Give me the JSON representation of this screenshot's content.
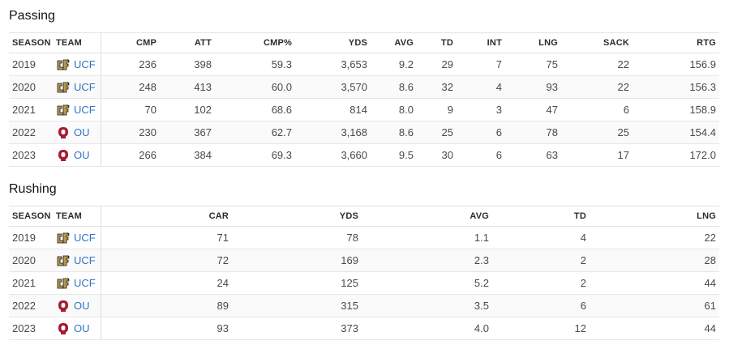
{
  "passing": {
    "title": "Passing",
    "columns": [
      "SEASON",
      "TEAM",
      "CMP",
      "ATT",
      "CMP%",
      "YDS",
      "AVG",
      "TD",
      "INT",
      "LNG",
      "SACK",
      "RTG"
    ],
    "rows": [
      {
        "season": "2019",
        "team": "UCF",
        "logo": "ucf-knights-logo",
        "cmp": "236",
        "att": "398",
        "pct": "59.3",
        "yds": "3,653",
        "avg": "9.2",
        "td": "29",
        "int": "7",
        "lng": "75",
        "sack": "22",
        "rtg": "156.9"
      },
      {
        "season": "2020",
        "team": "UCF",
        "logo": "ucf-knights-logo",
        "cmp": "248",
        "att": "413",
        "pct": "60.0",
        "yds": "3,570",
        "avg": "8.6",
        "td": "32",
        "int": "4",
        "lng": "93",
        "sack": "22",
        "rtg": "156.3"
      },
      {
        "season": "2021",
        "team": "UCF",
        "logo": "ucf-knights-logo",
        "cmp": "70",
        "att": "102",
        "pct": "68.6",
        "yds": "814",
        "avg": "8.0",
        "td": "9",
        "int": "3",
        "lng": "47",
        "sack": "6",
        "rtg": "158.9"
      },
      {
        "season": "2022",
        "team": "OU",
        "logo": "ou-sooners-logo",
        "cmp": "230",
        "att": "367",
        "pct": "62.7",
        "yds": "3,168",
        "avg": "8.6",
        "td": "25",
        "int": "6",
        "lng": "78",
        "sack": "25",
        "rtg": "154.4"
      },
      {
        "season": "2023",
        "team": "OU",
        "logo": "ou-sooners-logo",
        "cmp": "266",
        "att": "384",
        "pct": "69.3",
        "yds": "3,660",
        "avg": "9.5",
        "td": "30",
        "int": "6",
        "lng": "63",
        "sack": "17",
        "rtg": "172.0"
      }
    ]
  },
  "rushing": {
    "title": "Rushing",
    "columns": [
      "SEASON",
      "TEAM",
      "CAR",
      "YDS",
      "AVG",
      "TD",
      "LNG"
    ],
    "rows": [
      {
        "season": "2019",
        "team": "UCF",
        "logo": "ucf-knights-logo",
        "car": "71",
        "yds": "78",
        "avg": "1.1",
        "td": "4",
        "lng": "22"
      },
      {
        "season": "2020",
        "team": "UCF",
        "logo": "ucf-knights-logo",
        "car": "72",
        "yds": "169",
        "avg": "2.3",
        "td": "2",
        "lng": "28"
      },
      {
        "season": "2021",
        "team": "UCF",
        "logo": "ucf-knights-logo",
        "car": "24",
        "yds": "125",
        "avg": "5.2",
        "td": "2",
        "lng": "44"
      },
      {
        "season": "2022",
        "team": "OU",
        "logo": "ou-sooners-logo",
        "car": "89",
        "yds": "315",
        "avg": "3.5",
        "td": "6",
        "lng": "61"
      },
      {
        "season": "2023",
        "team": "OU",
        "logo": "ou-sooners-logo",
        "car": "93",
        "yds": "373",
        "avg": "4.0",
        "td": "12",
        "lng": "44"
      }
    ]
  },
  "colors": {
    "link": "#3173c6",
    "ucf_gold": "#b89a4a",
    "ou_crimson": "#a51c30"
  }
}
